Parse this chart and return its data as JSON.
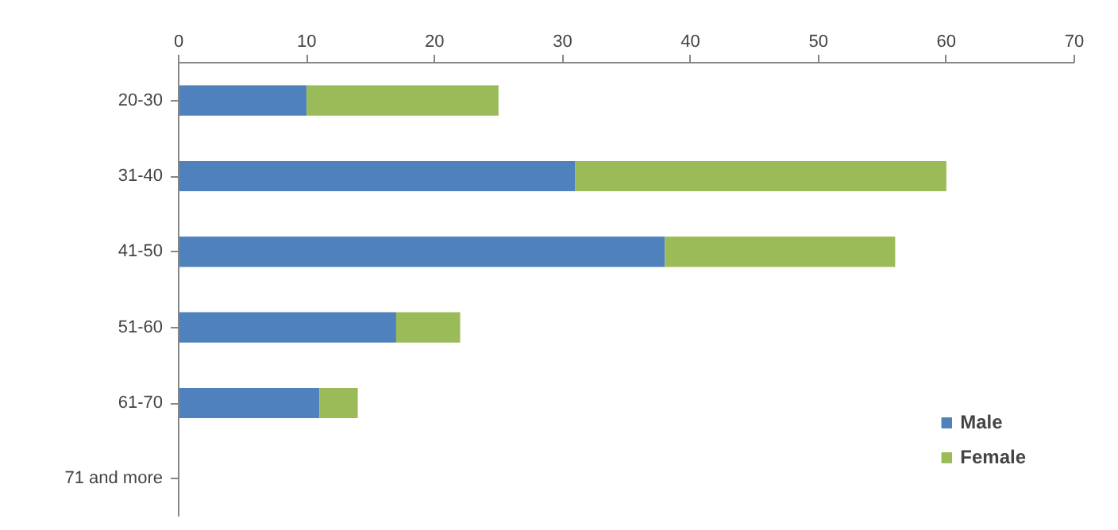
{
  "chart_data": {
    "type": "bar",
    "orientation": "horizontal",
    "stacked": true,
    "categories": [
      "20-30",
      "31-40",
      "41-50",
      "51-60",
      "61-70",
      "71 and more"
    ],
    "series": [
      {
        "name": "Male",
        "color": "#4f81bd",
        "values": [
          10,
          31,
          38,
          17,
          11,
          null
        ]
      },
      {
        "name": "Female",
        "color": "#9bbb59",
        "values": [
          15,
          29,
          18,
          5,
          3,
          null
        ]
      }
    ],
    "xlim": [
      0,
      70
    ],
    "xticks": [
      0,
      10,
      20,
      30,
      40,
      50,
      60,
      70
    ],
    "grid": false,
    "legend": "bottom right"
  }
}
